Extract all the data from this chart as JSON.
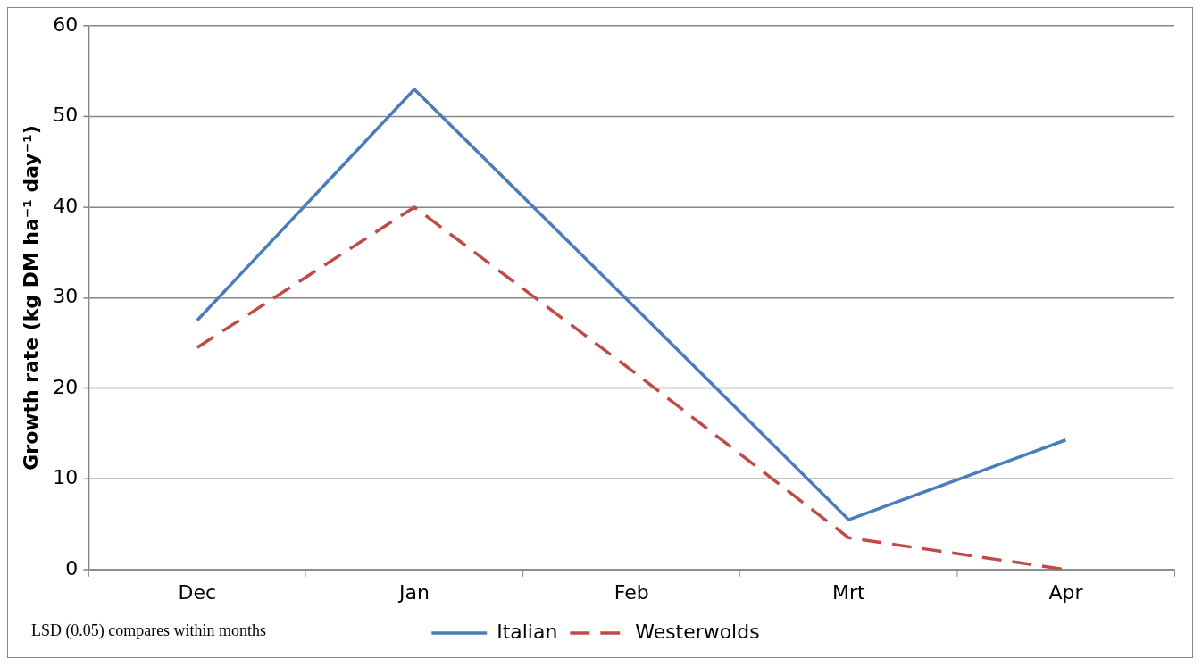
{
  "chart_data": {
    "type": "line",
    "ylabel": "Growth rate (kg DM ha⁻¹ day⁻¹)",
    "categories": [
      "Dec",
      "Jan",
      "Feb",
      "Mrt",
      "Apr"
    ],
    "series": [
      {
        "name": "Italian",
        "color": "#4a7ebb",
        "values": [
          27.5,
          53,
          29.3,
          5.5,
          14.3
        ],
        "line_style": "solid"
      },
      {
        "name": "Westerwolds",
        "color": "#be4b48",
        "values": [
          24.5,
          40,
          22,
          3.5,
          0
        ],
        "line_style": "dashed"
      }
    ],
    "ylim": [
      0,
      60
    ],
    "yticks": [
      0,
      10,
      20,
      30,
      40,
      50,
      60
    ],
    "grid": "y",
    "legend": "bottom",
    "marker": "none",
    "annotations": [
      "LSD (0.05) compares within months"
    ]
  }
}
